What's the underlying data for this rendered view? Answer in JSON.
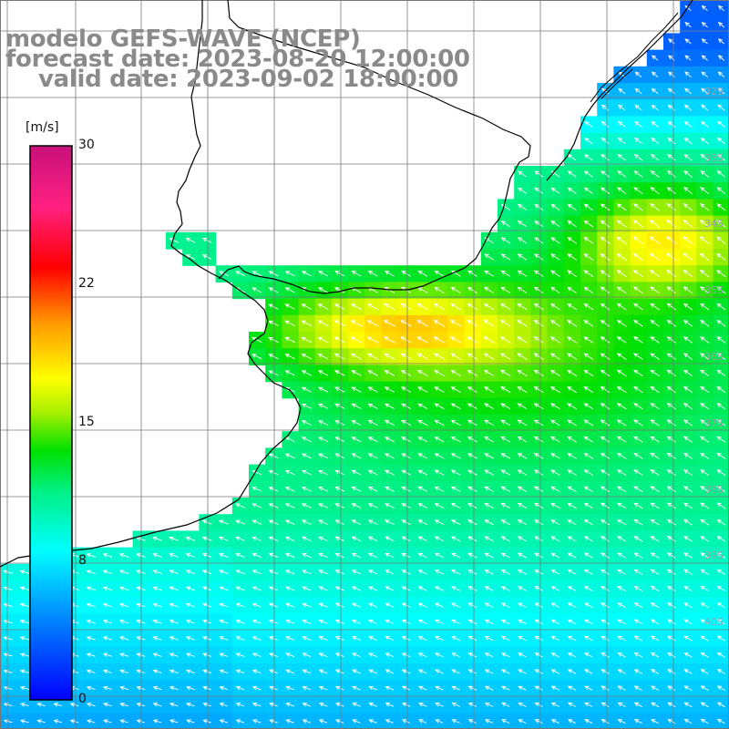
{
  "title": {
    "model": "modelo GEFS-WAVE (NCEP)",
    "forecast": "forecast date: 2023-08-20 12:00:00",
    "valid": "valid date: 2023-09-02 18:00:00"
  },
  "colorbar": {
    "units": "[m/s]",
    "min": 0,
    "max": 30,
    "ticks": [
      {
        "value": 30,
        "label": "30"
      },
      {
        "value": 22,
        "label": "22"
      },
      {
        "value": 15,
        "label": "15"
      },
      {
        "value": 8,
        "label": "8"
      },
      {
        "value": 0,
        "label": "0"
      }
    ]
  },
  "latitude_labels": [
    {
      "lat": 32,
      "label": "32S"
    },
    {
      "lat": 33,
      "label": "33S"
    },
    {
      "lat": 34,
      "label": "34S"
    },
    {
      "lat": 35,
      "label": "35S"
    },
    {
      "lat": 36,
      "label": "36S"
    },
    {
      "lat": 37,
      "label": "37S"
    },
    {
      "lat": 38,
      "label": "38S"
    },
    {
      "lat": 39,
      "label": "39S"
    },
    {
      "lat": 40,
      "label": "40S"
    }
  ],
  "colors": {
    "land": "#ffffff",
    "coastline": "#000000",
    "grid": "#7a7a7a",
    "arrows": "#ffffff",
    "title": "#8a8a8a"
  },
  "field": {
    "variable": "wind speed",
    "units": "m/s",
    "typical_wind_from": "southeast"
  }
}
